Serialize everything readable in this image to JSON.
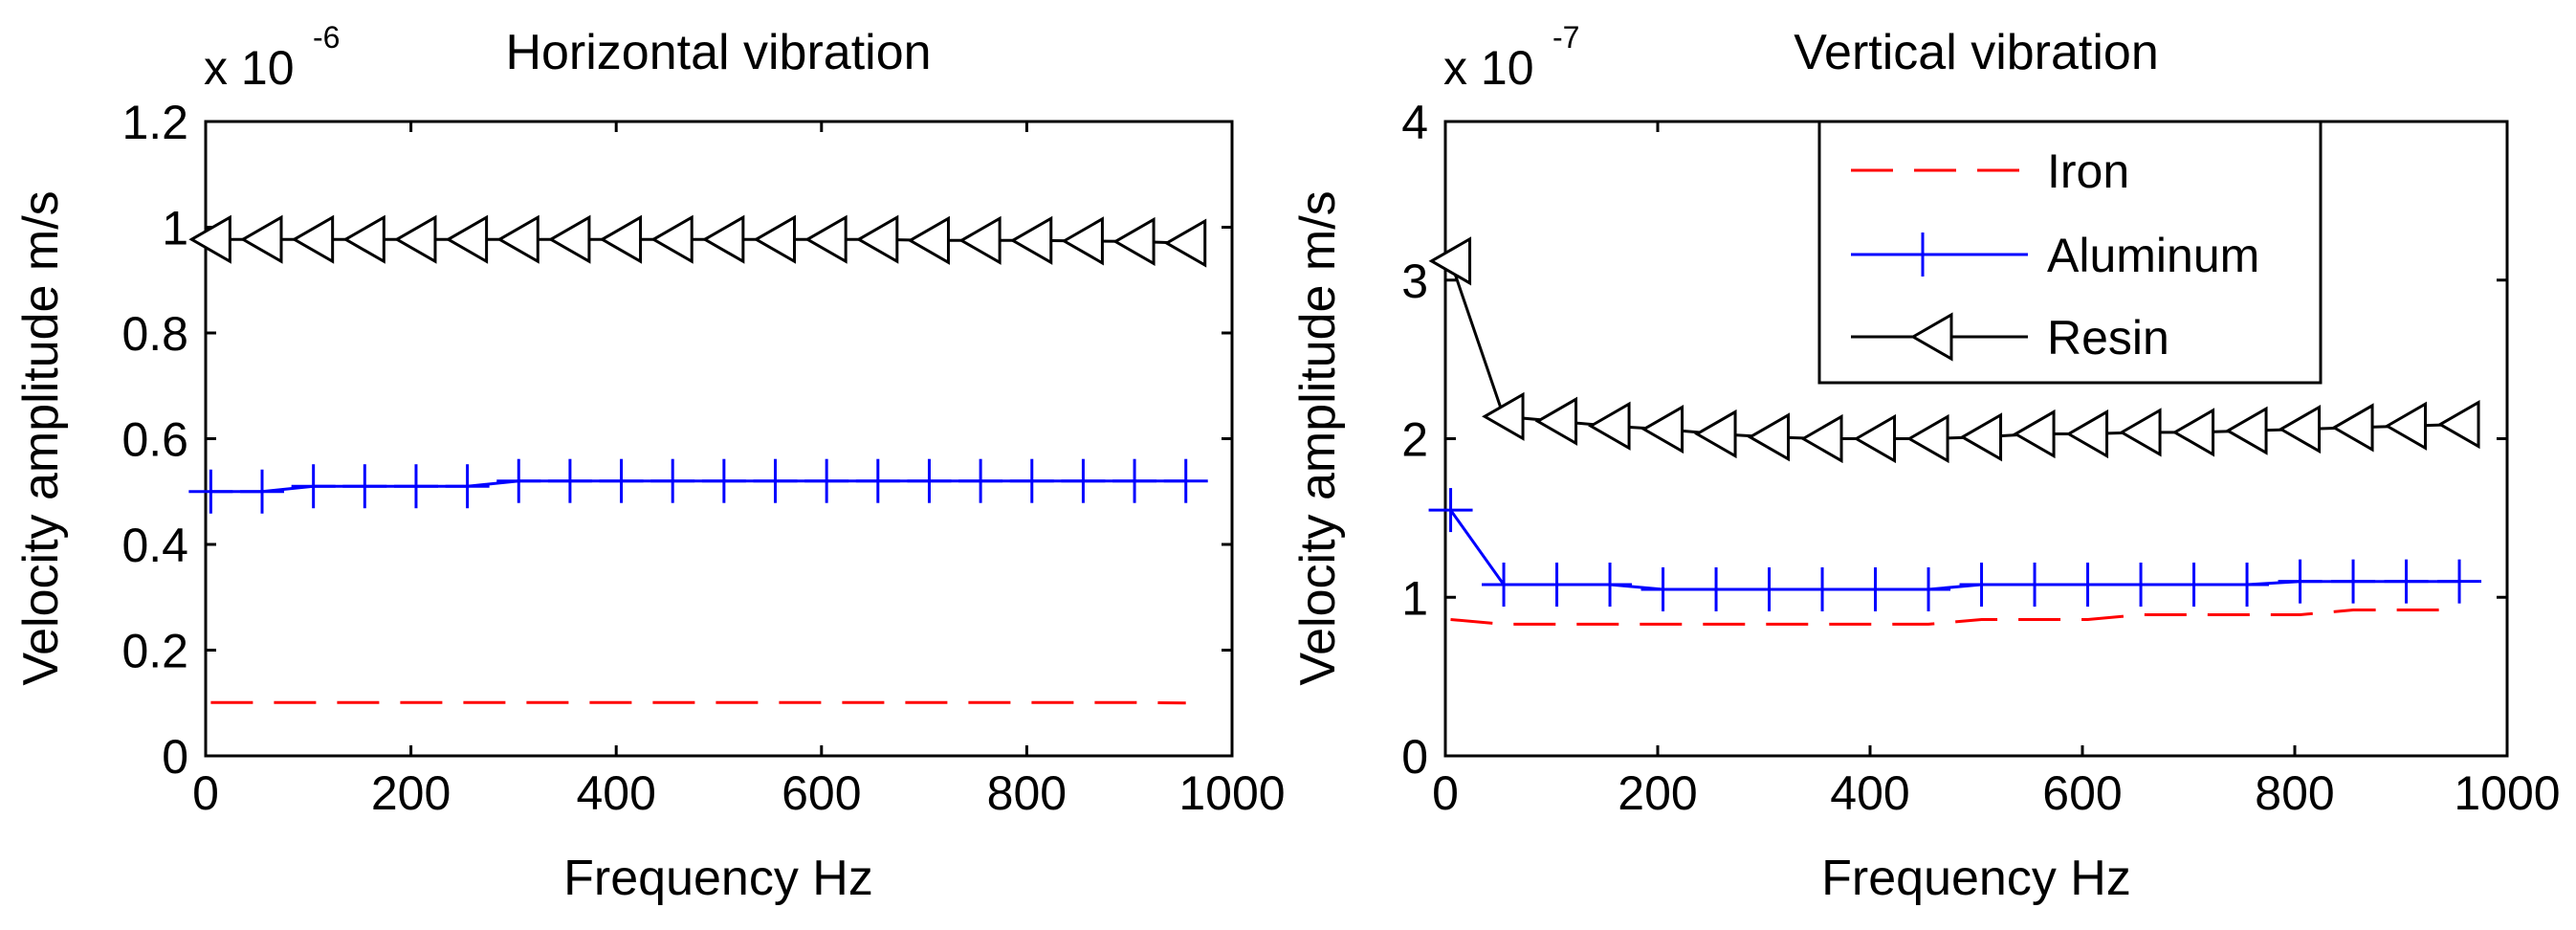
{
  "figure": {
    "panels": [
      "Horizontal vibration",
      "Vertical vibration"
    ]
  },
  "chart_data": [
    {
      "type": "line",
      "title": "Horizontal vibration",
      "xlabel": "Frequency Hz",
      "ylabel": "Velocity amplitude m/s",
      "scale_base": "x 10",
      "scale_exponent": "-6",
      "xlim": [
        0,
        1000
      ],
      "ylim": [
        0,
        1.2
      ],
      "xticks": [
        0,
        200,
        400,
        600,
        800,
        1000
      ],
      "xtick_labels": [
        "0",
        "200",
        "400",
        "600",
        "800",
        "1000"
      ],
      "yticks": [
        0,
        0.2,
        0.4,
        0.6,
        0.8,
        1.0,
        1.2
      ],
      "ytick_labels": [
        "0",
        "0.2",
        "0.4",
        "0.6",
        "0.8",
        "1",
        "1.2"
      ],
      "grid": false,
      "x": [
        5,
        55,
        105,
        155,
        205,
        255,
        305,
        355,
        405,
        455,
        505,
        555,
        605,
        655,
        705,
        755,
        805,
        855,
        905,
        955
      ],
      "series": [
        {
          "name": "Iron",
          "color": "#ff0000",
          "line": "dashed",
          "marker": "none",
          "values": [
            0.101,
            0.101,
            0.101,
            0.101,
            0.101,
            0.101,
            0.101,
            0.101,
            0.101,
            0.101,
            0.101,
            0.101,
            0.101,
            0.101,
            0.101,
            0.101,
            0.101,
            0.101,
            0.101,
            0.1
          ]
        },
        {
          "name": "Aluminum",
          "color": "#0000ff",
          "line": "solid",
          "marker": "plus",
          "values": [
            0.5,
            0.5,
            0.51,
            0.51,
            0.51,
            0.51,
            0.52,
            0.52,
            0.52,
            0.52,
            0.52,
            0.52,
            0.52,
            0.52,
            0.52,
            0.52,
            0.52,
            0.52,
            0.52,
            0.52
          ]
        },
        {
          "name": "Resin",
          "color": "#000000",
          "line": "solid",
          "marker": "triangle-left",
          "values": [
            0.977,
            0.977,
            0.977,
            0.977,
            0.977,
            0.977,
            0.977,
            0.977,
            0.977,
            0.977,
            0.977,
            0.977,
            0.977,
            0.977,
            0.975,
            0.975,
            0.975,
            0.974,
            0.973,
            0.97
          ]
        }
      ]
    },
    {
      "type": "line",
      "title": "Vertical vibration",
      "xlabel": "Frequency Hz",
      "ylabel": "Velocity amplitude m/s",
      "scale_base": "x 10",
      "scale_exponent": "-7",
      "xlim": [
        0,
        1000
      ],
      "ylim": [
        0,
        4
      ],
      "xticks": [
        0,
        200,
        400,
        600,
        800,
        1000
      ],
      "xtick_labels": [
        "0",
        "200",
        "400",
        "600",
        "800",
        "1000"
      ],
      "yticks": [
        0,
        1,
        2,
        3,
        4
      ],
      "ytick_labels": [
        "0",
        "1",
        "2",
        "3",
        "4"
      ],
      "grid": false,
      "legend": {
        "position": "top-right",
        "entries": [
          "Iron",
          "Aluminum",
          "Resin"
        ]
      },
      "x": [
        5,
        55,
        105,
        155,
        205,
        255,
        305,
        355,
        405,
        455,
        505,
        555,
        605,
        655,
        705,
        755,
        805,
        855,
        905,
        955
      ],
      "series": [
        {
          "name": "Iron",
          "color": "#ff0000",
          "line": "dashed",
          "marker": "none",
          "values": [
            0.86,
            0.83,
            0.83,
            0.83,
            0.83,
            0.83,
            0.83,
            0.83,
            0.83,
            0.83,
            0.86,
            0.86,
            0.86,
            0.89,
            0.89,
            0.89,
            0.89,
            0.92,
            0.92,
            0.92
          ]
        },
        {
          "name": "Aluminum",
          "color": "#0000ff",
          "line": "solid",
          "marker": "plus",
          "values": [
            1.55,
            1.08,
            1.08,
            1.08,
            1.05,
            1.05,
            1.05,
            1.05,
            1.05,
            1.05,
            1.08,
            1.08,
            1.08,
            1.08,
            1.08,
            1.08,
            1.1,
            1.1,
            1.1,
            1.1
          ]
        },
        {
          "name": "Resin",
          "color": "#000000",
          "line": "solid",
          "marker": "triangle-left",
          "values": [
            3.12,
            2.14,
            2.11,
            2.08,
            2.06,
            2.03,
            2.01,
            2.0,
            2.0,
            2.0,
            2.01,
            2.03,
            2.03,
            2.04,
            2.04,
            2.05,
            2.06,
            2.07,
            2.08,
            2.09
          ]
        }
      ]
    }
  ]
}
